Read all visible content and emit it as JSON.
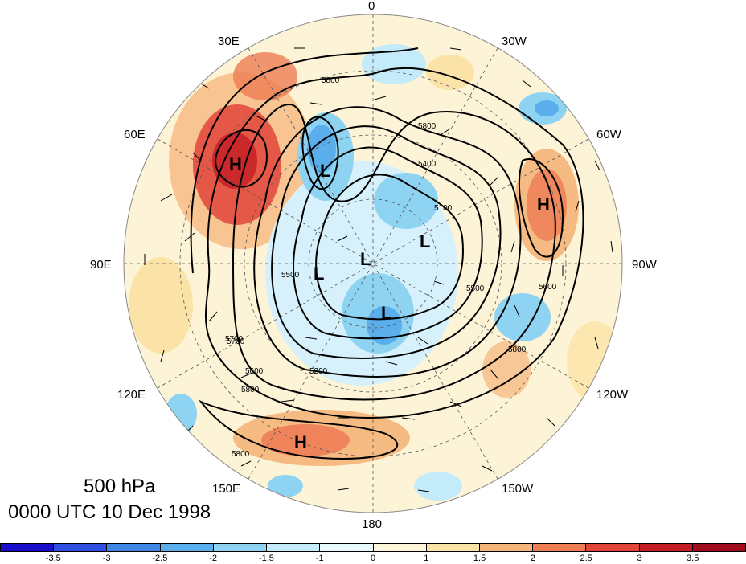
{
  "title": {
    "level": "500 hPa",
    "time": "0000 UTC 10 Dec 1998"
  },
  "longitude_labels": [
    "0",
    "30W",
    "60W",
    "90W",
    "120W",
    "150W",
    "180",
    "150E",
    "120E",
    "90E",
    "60E",
    "30E"
  ],
  "pressure_centers": [
    "H",
    "L",
    "L",
    "L",
    "L",
    "L",
    "H",
    "H"
  ],
  "contour_labels": [
    "5800",
    "5800",
    "5400",
    "5100",
    "5500",
    "5500",
    "5700",
    "5200",
    "5800",
    "5800",
    "5600",
    "5800",
    "5700",
    "5600"
  ],
  "colorbar": {
    "labels": [
      "-3.5",
      "-3",
      "-2.5",
      "-2",
      "-1.5",
      "-1",
      "0",
      "1",
      "1.5",
      "2",
      "2.5",
      "3",
      "3.5"
    ],
    "colors": [
      "#1a0fc9",
      "#2f4fe0",
      "#3f86e6",
      "#5aaeeb",
      "#8fd3f2",
      "#c4ebfa",
      "#e8f8fd",
      "#fdf6da",
      "#fbe3a7",
      "#f5b47a",
      "#ee7d54",
      "#e2453a",
      "#c41d24",
      "#a00d1d"
    ]
  },
  "colors": {
    "warm_strong": "#e2453a",
    "warm_mid": "#f5b47a",
    "warm_light": "#fdf0cc",
    "cool_mid": "#8fd3f2",
    "cool_light": "#d6f1fb",
    "cool_strong": "#5aaeeb"
  }
}
